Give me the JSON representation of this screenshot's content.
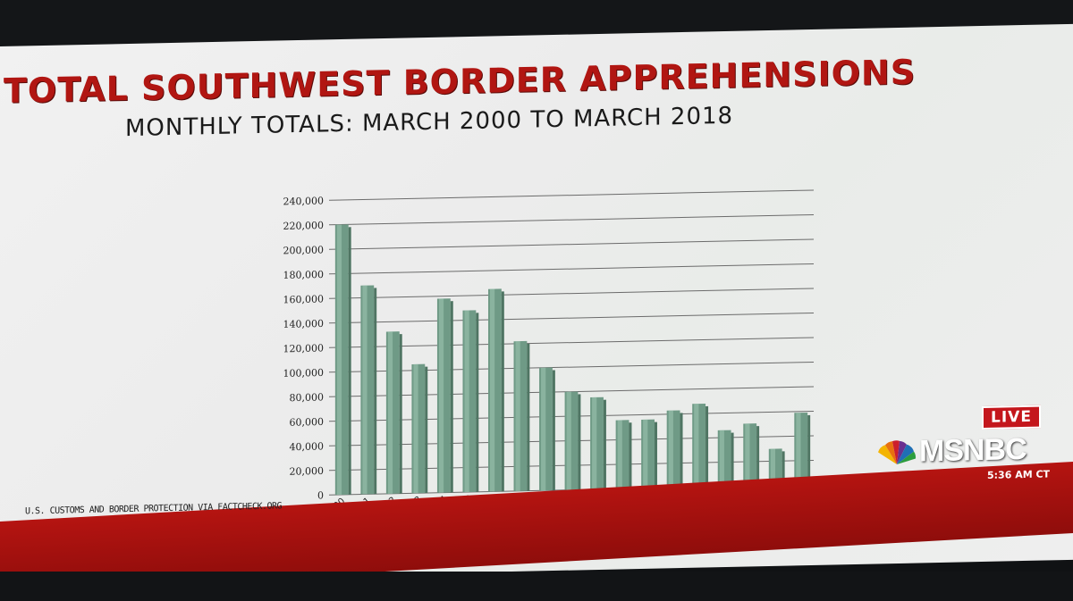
{
  "header": {
    "title": "TOTAL SOUTHWEST BORDER APPREHENSIONS",
    "subtitle": "MONTHLY TOTALS: MARCH 2000 TO MARCH 2018"
  },
  "chart_data": {
    "type": "bar",
    "categories": [
      "Mar-00",
      "Mar-01",
      "Mar-02",
      "Mar-03",
      "Mar-04",
      "Mar-05",
      "Mar-06",
      "Mar-07",
      "Mar-08",
      "Mar-09",
      "Mar-10",
      "Mar-11",
      "Mar-12",
      "Mar-13",
      "Mar-14",
      "Mar-15",
      "Mar-16",
      "Mar-17",
      "Mar-18"
    ],
    "values": [
      220000,
      170000,
      132000,
      105000,
      158000,
      148000,
      165000,
      122000,
      100000,
      80000,
      75000,
      56000,
      56000,
      63000,
      68000,
      46000,
      51000,
      30000,
      59000
    ],
    "y_ticks": [
      "0",
      "20,000",
      "40,000",
      "60,000",
      "80,000",
      "100,000",
      "120,000",
      "140,000",
      "160,000",
      "180,000",
      "200,000",
      "220,000",
      "240,000"
    ],
    "ylim": [
      0,
      240000
    ],
    "grid": true,
    "legend": "none",
    "colors": {
      "bar": "#6f9a86",
      "bar_highlight": "#9cc4b0",
      "bar_shadow": "#4f7563",
      "grid": "#6b6b6b"
    }
  },
  "footer": {
    "source": "U.S. CUSTOMS AND BORDER PROTECTION VIA FACTCHECK.ORG"
  },
  "broadcast": {
    "live_label": "LIVE",
    "network": "MSNBC",
    "logo_icon": "peacock-icon",
    "time": "5:36 AM CT",
    "colors": {
      "live_bg": "#c4161c",
      "band": "#b51411"
    }
  }
}
